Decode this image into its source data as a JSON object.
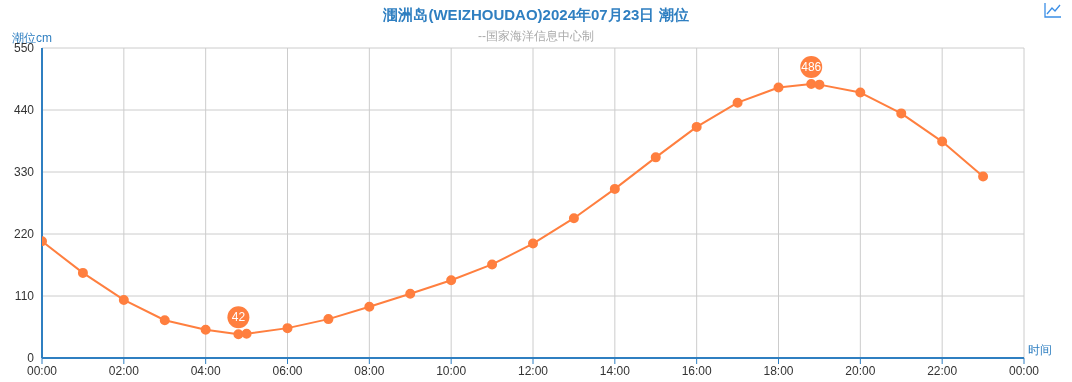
{
  "chart_data": {
    "type": "line",
    "title": "涠洲岛(WEIZHOUDAO)2024年07月23日 潮位",
    "subtitle": "--国家海洋信息中心制",
    "xlabel": "时间",
    "ylabel": "潮位cm",
    "x": [
      0,
      1,
      2,
      3,
      4,
      4.8,
      5,
      6,
      7,
      8,
      9,
      10,
      11,
      12,
      13,
      14,
      15,
      16,
      17,
      18,
      18.8,
      19,
      20,
      21,
      22,
      23
    ],
    "series": [
      {
        "color": "#ff7f3f",
        "values": [
          207,
          151,
          103,
          67,
          50,
          42,
          43,
          53,
          69,
          91,
          114,
          138,
          166,
          203,
          248,
          300,
          356,
          410,
          453,
          480,
          486,
          485,
          471,
          434,
          384,
          322
        ]
      }
    ],
    "xlim": [
      0,
      24
    ],
    "xticks": [
      {
        "value": 0,
        "label": "00:00"
      },
      {
        "value": 2,
        "label": "02:00"
      },
      {
        "value": 4,
        "label": "04:00"
      },
      {
        "value": 6,
        "label": "06:00"
      },
      {
        "value": 8,
        "label": "08:00"
      },
      {
        "value": 10,
        "label": "10:00"
      },
      {
        "value": 12,
        "label": "12:00"
      },
      {
        "value": 14,
        "label": "14:00"
      },
      {
        "value": 16,
        "label": "16:00"
      },
      {
        "value": 18,
        "label": "18:00"
      },
      {
        "value": 20,
        "label": "20:00"
      },
      {
        "value": 22,
        "label": "22:00"
      },
      {
        "value": 24,
        "label": "00:00"
      }
    ],
    "ylim": [
      0,
      550
    ],
    "yticks": [
      0,
      110,
      220,
      330,
      440,
      550
    ],
    "annotations": [
      {
        "text": "42",
        "x": 4.8,
        "y": 42
      },
      {
        "text": "486",
        "x": 18.8,
        "y": 486
      }
    ],
    "grid": true,
    "legend": false,
    "marker": "circle",
    "line_style": "solid"
  }
}
